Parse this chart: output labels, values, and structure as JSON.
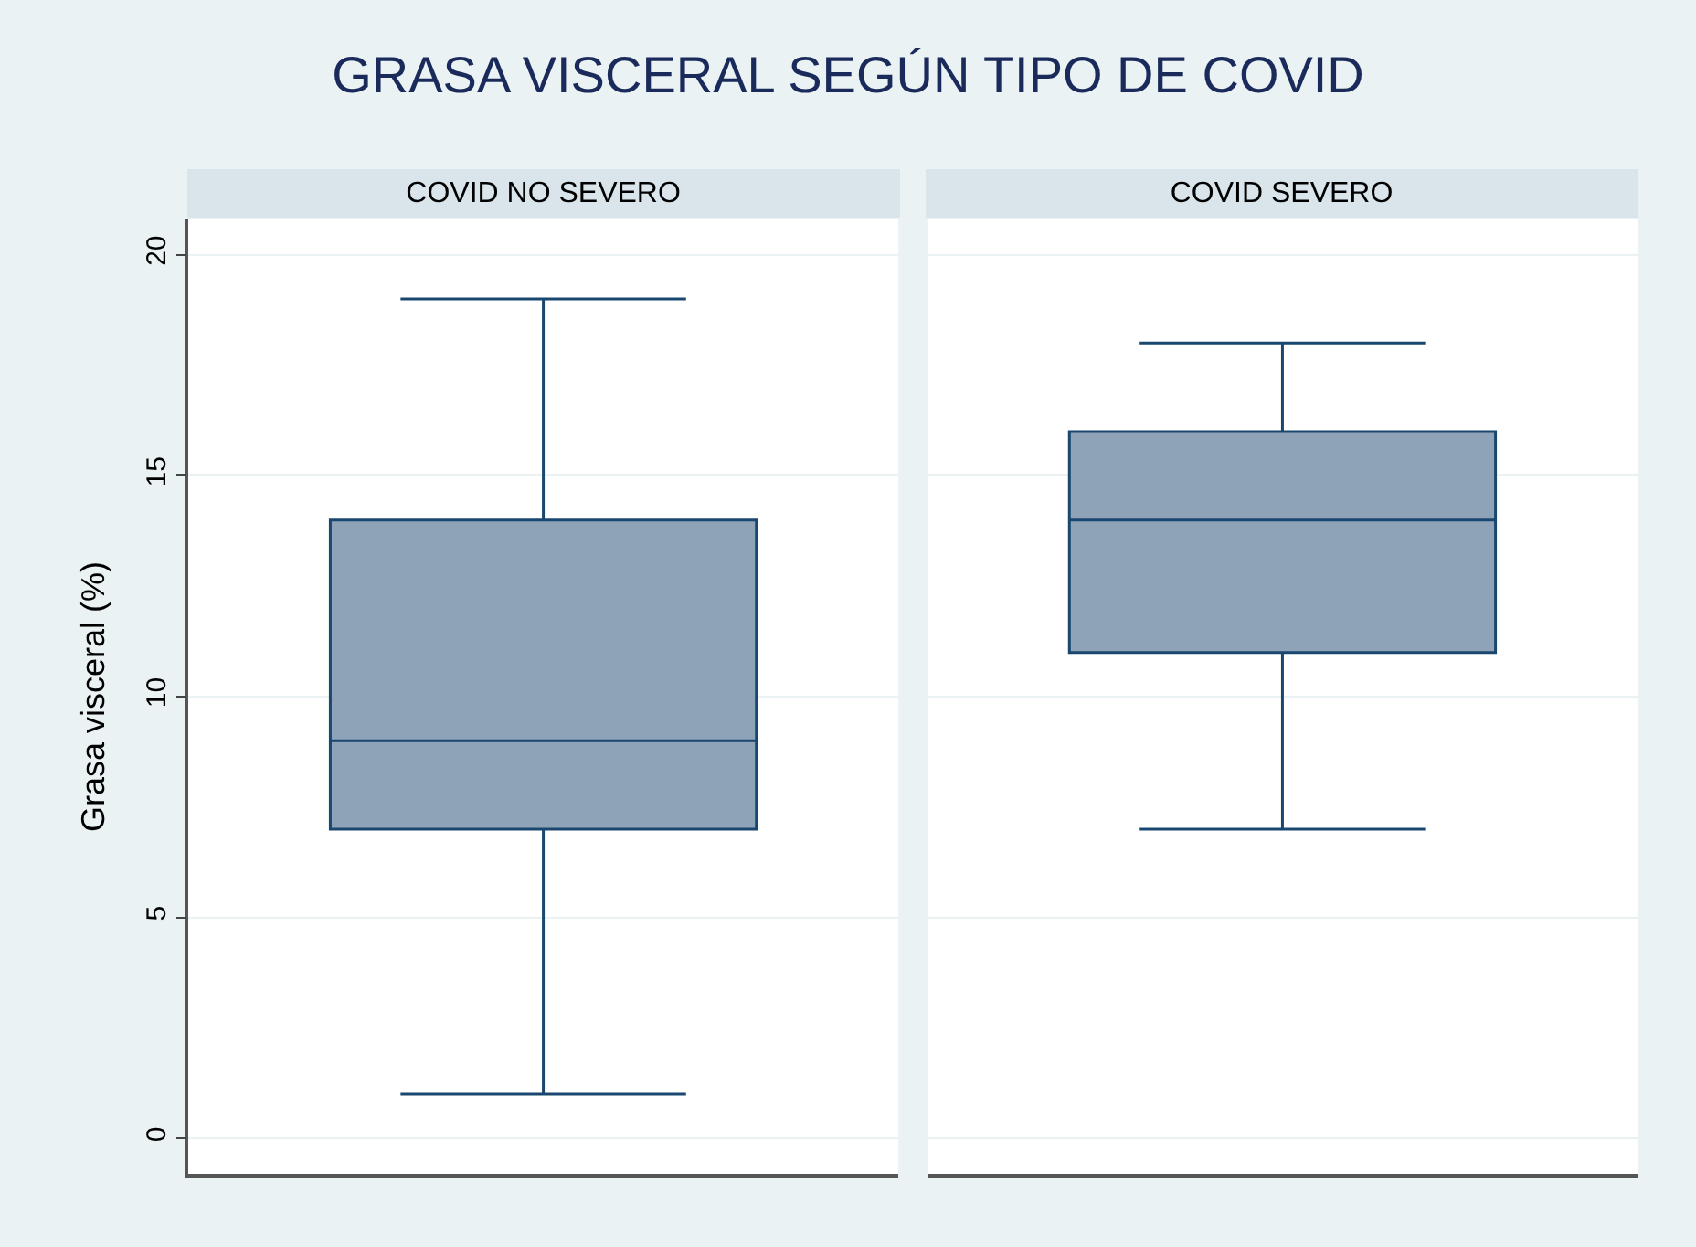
{
  "chart_data": {
    "type": "box",
    "title": "GRASA VISCERAL SEGÚN TIPO DE COVID",
    "ylabel": "Grasa visceral (%)",
    "categories": [
      "COVID NO SEVERO",
      "COVID SEVERO"
    ],
    "boxes": [
      {
        "low": 1,
        "q1": 7,
        "median": 9,
        "q3": 14,
        "high": 19
      },
      {
        "low": 7,
        "q1": 11,
        "median": 14,
        "q3": 16,
        "high": 18
      }
    ],
    "color": "#8ea3b8",
    "ylim": [
      -0.8,
      20.8
    ],
    "yticks": [
      0,
      5,
      10,
      15,
      20
    ],
    "grid": "y"
  }
}
